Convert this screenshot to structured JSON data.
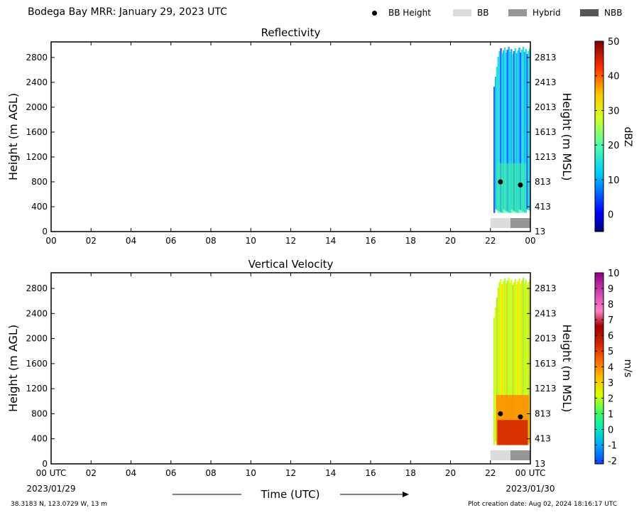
{
  "title": "Bodega Bay MRR:  January 29, 2023 UTC",
  "legend": [
    {
      "label": "BB Height",
      "kind": "dot",
      "color": "#000000"
    },
    {
      "label": "BB",
      "kind": "swatch",
      "color": "#dcdcdc"
    },
    {
      "label": "Hybrid",
      "kind": "swatch",
      "color": "#969696"
    },
    {
      "label": "NBB",
      "kind": "swatch",
      "color": "#555555"
    }
  ],
  "footer": {
    "location": "38.3183 N, 123.0729 W, 13 m",
    "created": "Plot creation date: Aug 02, 2024 18:16:17 UTC"
  },
  "chart_data": [
    {
      "type": "heatmap",
      "title": "Reflectivity",
      "ylabel": "Height (m AGL)",
      "y2label": "Height (m MSL)",
      "x_ticks": [
        "00",
        "02",
        "04",
        "06",
        "08",
        "10",
        "12",
        "14",
        "16",
        "18",
        "20",
        "22",
        "00"
      ],
      "xlim": [
        0,
        24
      ],
      "ylim": [
        0,
        3050
      ],
      "y_ticks": [
        0,
        400,
        800,
        1200,
        1600,
        2000,
        2400,
        2800
      ],
      "y2_ticks": [
        13,
        413,
        813,
        1213,
        1613,
        2013,
        2413,
        2813
      ],
      "colorbar": {
        "label": "dBZ",
        "range": [
          -5,
          50
        ],
        "ticks": [
          0,
          10,
          20,
          30,
          40,
          50
        ]
      },
      "data_extent": {
        "time_start": 22.15,
        "time_end": 24,
        "height_min": 300,
        "height_max": 2970
      },
      "bb_height": [
        {
          "time": 22.5,
          "height": 800
        },
        {
          "time": 23.5,
          "height": 750
        }
      ],
      "bb_type": [
        {
          "type": "BB",
          "start": 22,
          "end": 23
        },
        {
          "type": "Hybrid",
          "start": 23,
          "end": 24
        }
      ]
    },
    {
      "type": "heatmap",
      "title": "Vertical Velocity",
      "ylabel": "Height (m AGL)",
      "y2label": "Height (m MSL)",
      "xlabel": "Time (UTC)",
      "x_ticks": [
        "00 UTC",
        "02",
        "04",
        "06",
        "08",
        "10",
        "12",
        "14",
        "16",
        "18",
        "20",
        "22",
        "00 UTC"
      ],
      "x_dates": {
        "start": "2023/01/29",
        "end": "2023/01/30"
      },
      "xlim": [
        0,
        24
      ],
      "ylim": [
        0,
        3050
      ],
      "y_ticks": [
        0,
        400,
        800,
        1200,
        1600,
        2000,
        2400,
        2800
      ],
      "y2_ticks": [
        13,
        413,
        813,
        1213,
        1613,
        2013,
        2413,
        2813
      ],
      "colorbar": {
        "label": "m/s",
        "range": [
          -2.2,
          10
        ],
        "ticks": [
          -2,
          -1,
          0,
          1,
          2,
          3,
          4,
          5,
          6,
          7,
          8,
          9,
          10
        ]
      },
      "data_extent": {
        "time_start": 22.15,
        "time_end": 24,
        "height_min": 300,
        "height_max": 2970
      },
      "bb_height": [
        {
          "time": 22.5,
          "height": 800
        },
        {
          "time": 23.5,
          "height": 750
        }
      ],
      "bb_type": [
        {
          "type": "BB",
          "start": 22,
          "end": 23
        },
        {
          "type": "Hybrid",
          "start": 23,
          "end": 24
        }
      ]
    }
  ]
}
